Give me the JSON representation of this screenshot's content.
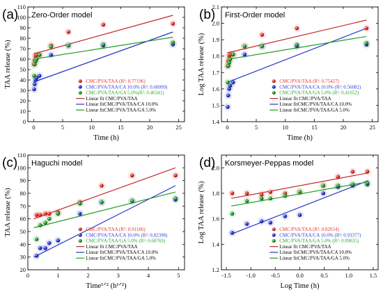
{
  "chart_data": [
    {
      "type": "scatter",
      "panel_label": "(a)",
      "title": "Zero-Order model",
      "xlabel": "Time (h)",
      "ylabel": "TAA release (%)",
      "xlim": [
        -1,
        26
      ],
      "ylim": [
        0,
        110
      ],
      "xticks": [
        0,
        5,
        10,
        15,
        20,
        25
      ],
      "yticks": [
        0,
        10,
        20,
        30,
        40,
        50,
        60,
        70,
        80,
        90,
        100,
        110
      ],
      "xtick_labels": [
        "0",
        "5",
        "10",
        "15",
        "20",
        "25"
      ],
      "ytick_labels": [
        "0",
        "10",
        "20",
        "30",
        "40",
        "50",
        "60",
        "70",
        "80",
        "90",
        "100",
        "110"
      ],
      "legend_position": "bottom-right",
      "series": [
        {
          "name": "CMC/PVA/TAA (R²: 0.77196)",
          "color": "#e8352b",
          "x": [
            0.08,
            0.17,
            0.33,
            0.5,
            1,
            3,
            6,
            12,
            24
          ],
          "y": [
            55,
            59,
            63,
            64,
            64,
            73,
            86,
            93,
            94
          ]
        },
        {
          "name": "CMC/PVA/TAA/CA 10.0% (R²: 0.60099)",
          "color": "#2e3fd6",
          "x": [
            0.08,
            0.17,
            0.33,
            0.5,
            1,
            3,
            6,
            12,
            24
          ],
          "y": [
            31,
            36,
            40,
            42,
            44,
            64,
            73,
            73,
            74
          ]
        },
        {
          "name": "CMC/PVA/TAA/GA 5.0%(R²: 0.46341)",
          "color": "#2ea32e",
          "x": [
            0.08,
            0.17,
            0.33,
            0.5,
            1,
            3,
            6,
            12,
            24
          ],
          "y": [
            44,
            55,
            58,
            60,
            64,
            72,
            73,
            74,
            76
          ]
        }
      ],
      "fit_lines": [
        {
          "name": "Linear fit CMC/PVA/TAA",
          "color": "#c0282a",
          "x": [
            0,
            24
          ],
          "y": [
            65,
            102
          ]
        },
        {
          "name": "Linear fitCMC/PVA/TAA/CA 10.0%",
          "color": "#2233c8",
          "x": [
            0,
            24
          ],
          "y": [
            38,
            86
          ]
        },
        {
          "name": "Linear fitCMC/PVA/TAA/GA 5.0%",
          "color": "#229922",
          "x": [
            0,
            24
          ],
          "y": [
            60,
            81
          ]
        }
      ]
    },
    {
      "type": "scatter",
      "panel_label": "(b)",
      "title": "First-Order model",
      "xlabel": "Time (h)",
      "ylabel": "Log TAA release (%)",
      "xlim": [
        -1,
        26
      ],
      "ylim": [
        1.4,
        2.1
      ],
      "xticks": [
        0,
        5,
        10,
        15,
        20,
        25
      ],
      "yticks": [
        1.4,
        1.5,
        1.6,
        1.7,
        1.8,
        1.9,
        2.0,
        2.1
      ],
      "xtick_labels": [
        "0",
        "5",
        "10",
        "15",
        "20",
        "25"
      ],
      "ytick_labels": [
        "1.4",
        "1.5",
        "1.6",
        "1.7",
        "1.8",
        "1.9",
        "2.0",
        "2.1"
      ],
      "legend_position": "bottom-right",
      "series": [
        {
          "name": "CMC/PVA/TAA (R²: 0.75427)",
          "color": "#e8352b",
          "x": [
            0.08,
            0.17,
            0.33,
            0.5,
            1,
            3,
            6,
            12,
            24
          ],
          "y": [
            1.74,
            1.77,
            1.8,
            1.81,
            1.81,
            1.86,
            1.93,
            1.97,
            1.97
          ]
        },
        {
          "name": "CMC/PVA/TAA/CA 10.0% (R²: 0.56082)",
          "color": "#2e3fd6",
          "x": [
            0.08,
            0.17,
            0.33,
            0.5,
            1,
            3,
            6,
            12,
            24
          ],
          "y": [
            1.49,
            1.56,
            1.6,
            1.62,
            1.64,
            1.81,
            1.86,
            1.86,
            1.87
          ]
        },
        {
          "name": "CMC/PVA/TAA/GA 5.0% (R²: 0.41652)",
          "color": "#2ea32e",
          "x": [
            0.08,
            0.17,
            0.33,
            0.5,
            1,
            3,
            6,
            12,
            24
          ],
          "y": [
            1.64,
            1.74,
            1.76,
            1.78,
            1.81,
            1.86,
            1.86,
            1.87,
            1.88
          ]
        }
      ],
      "fit_lines": [
        {
          "name": "Linear fit CMC/PVA/TAA",
          "color": "#c0282a",
          "x": [
            0,
            24
          ],
          "y": [
            1.82,
            2.02
          ]
        },
        {
          "name": "Linear fitCMC/PVA/TAA/CA 10.0%",
          "color": "#2233c8",
          "x": [
            0,
            24
          ],
          "y": [
            1.64,
            1.97
          ]
        },
        {
          "name": "Linear fitCMC/PVA/TAA/GA 5.0%",
          "color": "#229922",
          "x": [
            0,
            24
          ],
          "y": [
            1.78,
            1.92
          ]
        }
      ]
    },
    {
      "type": "scatter",
      "panel_label": "(c)",
      "title": "Haguchi model",
      "xlabel": "Time¹ᐟ² (h¹ᐟ²)",
      "ylabel": "TAA release (%)",
      "xlim": [
        0,
        5.2
      ],
      "ylim": [
        20,
        110
      ],
      "xticks": [
        0,
        1,
        2,
        3,
        4,
        5
      ],
      "yticks": [
        20,
        30,
        40,
        50,
        60,
        70,
        80,
        90,
        100,
        110
      ],
      "xtick_labels": [
        "0",
        "1",
        "2",
        "3",
        "4",
        "5"
      ],
      "ytick_labels": [
        "20",
        "30",
        "40",
        "50",
        "60",
        "70",
        "80",
        "90",
        "100",
        "110"
      ],
      "legend_position": "bottom-right",
      "series": [
        {
          "name": "CMC/PVA/TAA (R²: 0.91186)",
          "color": "#e8352b",
          "x": [
            0.29,
            0.41,
            0.58,
            0.71,
            1,
            1.73,
            2.45,
            3.46,
            4.9
          ],
          "y": [
            63,
            63,
            64,
            64,
            65,
            73,
            86,
            94,
            94
          ]
        },
        {
          "name": "CMC/PVA/TAA/CA 10.0% (R²: 0.82398)",
          "color": "#2e3fd6",
          "x": [
            0.29,
            0.41,
            0.58,
            0.71,
            1,
            1.73,
            2.45,
            3.46,
            4.9
          ],
          "y": [
            31,
            37,
            37,
            41,
            43,
            64,
            73,
            74,
            75
          ]
        },
        {
          "name": "CMC/PVA/TAA/GA 5.0% (R²: 0.68769)",
          "color": "#2ea32e",
          "x": [
            0.29,
            0.41,
            0.58,
            0.71,
            1,
            1.73,
            2.45,
            3.46,
            4.9
          ],
          "y": [
            44,
            55,
            57,
            60,
            64,
            72,
            73,
            74,
            76
          ]
        }
      ],
      "fit_lines": [
        {
          "name": "Linear fit CMC/PVA/TAA",
          "color": "#c0282a",
          "x": [
            0.2,
            4.9
          ],
          "y": [
            60,
            100
          ]
        },
        {
          "name": "Linear fitCMC/PVA/TAA/CA 10.0%",
          "color": "#2233c8",
          "x": [
            0.2,
            4.9
          ],
          "y": [
            30,
            86
          ]
        },
        {
          "name": "Linear fitCMC/PVA/TAA/GA 5.0%",
          "color": "#229922",
          "x": [
            0.2,
            4.9
          ],
          "y": [
            53,
            81
          ]
        }
      ]
    },
    {
      "type": "scatter",
      "panel_label": "(d)",
      "title": "Korsmeyer-Peppas model",
      "xlabel": "Log Time (h)",
      "ylabel": "Log TAA release (%)",
      "xlim": [
        -1.6,
        1.6
      ],
      "ylim": [
        1.2,
        2.1
      ],
      "xticks": [
        -1.5,
        -1.0,
        -0.5,
        0.0,
        0.5,
        1.0,
        1.5
      ],
      "yticks": [
        1.2,
        1.4,
        1.6,
        1.8,
        2.0
      ],
      "xtick_labels": [
        "-1.5",
        "-1.0",
        "-0.5",
        "0.0",
        "0.5",
        "1.0",
        "1.5"
      ],
      "ytick_labels": [
        "1.2",
        "1.4",
        "1.6",
        "1.8",
        "2.0"
      ],
      "legend_position": "bottom-right",
      "series": [
        {
          "name": "CMC/PVA/TAA (R²: 0.82014)",
          "color": "#e8352b",
          "x": [
            -1.38,
            -1.08,
            -0.78,
            -0.6,
            -0.3,
            0,
            0.48,
            0.78,
            1.08,
            1.38
          ],
          "y": [
            1.8,
            1.8,
            1.79,
            1.81,
            1.8,
            1.81,
            1.86,
            1.93,
            1.97,
            1.97
          ]
        },
        {
          "name": "CMC/PVA/TAA/CA 10.0% (R²: 0.93377)",
          "color": "#2e3fd6",
          "x": [
            -1.38,
            -1.08,
            -0.78,
            -0.6,
            -0.3,
            0,
            0.48,
            0.78,
            1.08,
            1.38
          ],
          "y": [
            1.49,
            1.56,
            1.58,
            1.57,
            1.62,
            1.63,
            1.8,
            1.85,
            1.86,
            1.87
          ]
        },
        {
          "name": "CMC/PVA/TAA/GA 5.0% (R²: 0.89835)",
          "color": "#2ea32e",
          "x": [
            -1.38,
            -1.08,
            -0.78,
            -0.6,
            -0.3,
            0,
            0.48,
            0.78,
            1.08,
            1.38
          ],
          "y": [
            1.64,
            1.74,
            1.76,
            1.76,
            1.78,
            1.81,
            1.86,
            1.86,
            1.87,
            1.88
          ]
        }
      ],
      "fit_lines": [
        {
          "name": "Linear fit CMC/PVA/TAA",
          "color": "#c0282a",
          "x": [
            -1.4,
            1.4
          ],
          "y": [
            1.76,
            1.96
          ]
        },
        {
          "name": "Linear fitCMC/PVA/TAA/CA 10.0%",
          "color": "#2233c8",
          "x": [
            -1.4,
            1.4
          ],
          "y": [
            1.48,
            1.9
          ]
        },
        {
          "name": "Linear fitCMC/PVA/TAA/GA 5.0%",
          "color": "#229922",
          "x": [
            -1.4,
            1.4
          ],
          "y": [
            1.7,
            1.89
          ]
        }
      ]
    }
  ]
}
